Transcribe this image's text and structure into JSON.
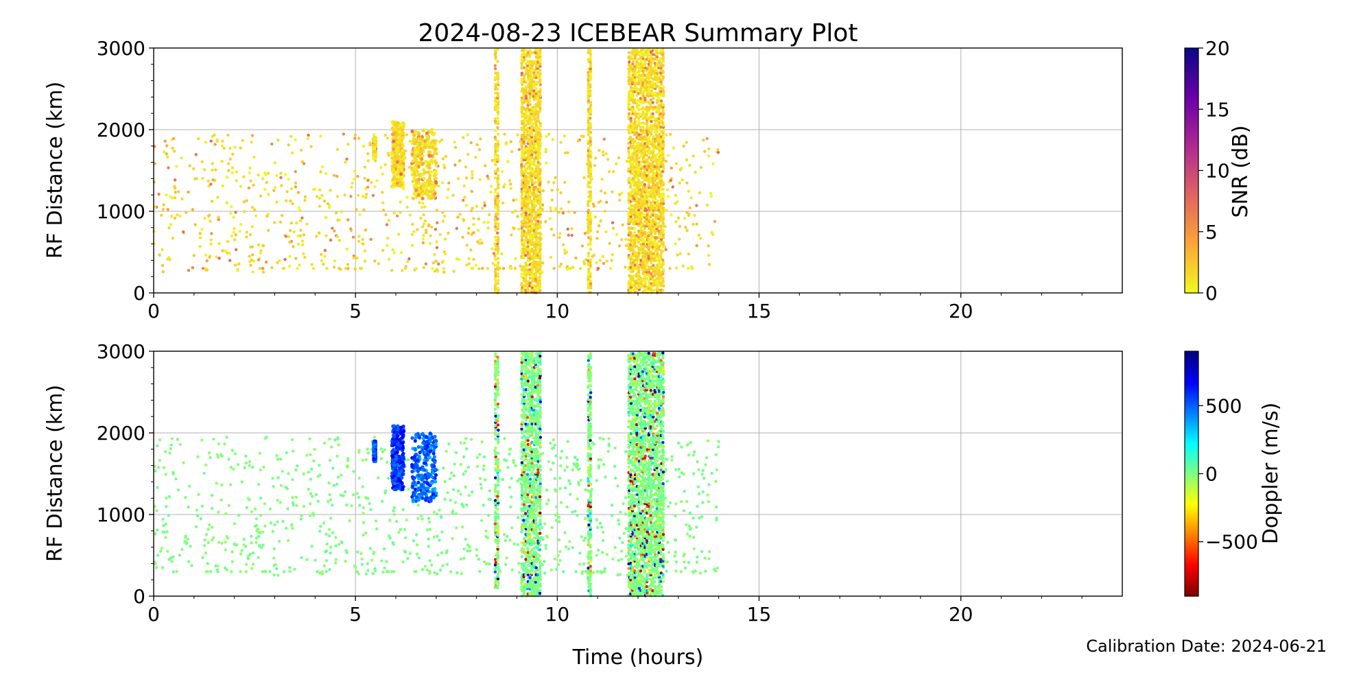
{
  "figure": {
    "title": "2024-08-23 ICEBEAR Summary Plot",
    "xlabel": "Time (hours)",
    "footer": "Calibration Date: 2024-06-21"
  },
  "chart_data": [
    {
      "type": "scatter",
      "name": "snr-panel",
      "ylabel": "RF Distance (km)",
      "xlim": [
        0,
        24
      ],
      "ylim": [
        0,
        3000
      ],
      "xticks": [
        0,
        5,
        10,
        15,
        20
      ],
      "yticks": [
        0,
        1000,
        2000,
        3000
      ],
      "grid": true,
      "colorbar": {
        "label": "SNR (dB)",
        "range": [
          0,
          20
        ],
        "ticks": [
          0,
          5,
          10,
          15,
          20
        ],
        "colormap": "plasma_r",
        "colors": [
          "#f0f921",
          "#fca636",
          "#e16462",
          "#b12a90",
          "#6a00a8",
          "#0d0887"
        ]
      },
      "bursts": [
        {
          "x": 8.5,
          "width": 0.12,
          "yrange": [
            0,
            3000
          ]
        },
        {
          "x": 9.35,
          "width": 0.5,
          "yrange": [
            0,
            3000
          ]
        },
        {
          "x": 10.8,
          "width": 0.1,
          "yrange": [
            0,
            3000
          ]
        },
        {
          "x": 12.2,
          "width": 0.9,
          "yrange": [
            0,
            3000
          ]
        }
      ],
      "clusters": [
        {
          "x": [
            5.9,
            6.2
          ],
          "y": [
            1300,
            2100
          ]
        },
        {
          "x": [
            6.4,
            7.0
          ],
          "y": [
            1150,
            2000
          ]
        },
        {
          "x": [
            5.45,
            5.5
          ],
          "y": [
            1650,
            1900
          ]
        }
      ],
      "scatter_extent": {
        "x": [
          0,
          14
        ],
        "y": [
          250,
          1950
        ]
      }
    },
    {
      "type": "scatter",
      "name": "doppler-panel",
      "ylabel": "RF Distance (km)",
      "xlim": [
        0,
        24
      ],
      "ylim": [
        0,
        3000
      ],
      "xticks": [
        0,
        5,
        10,
        15,
        20
      ],
      "yticks": [
        0,
        1000,
        2000,
        3000
      ],
      "grid": true,
      "colorbar": {
        "label": "Doppler (m/s)",
        "range": [
          -900,
          900
        ],
        "ticks": [
          -500,
          0,
          500
        ],
        "ticklabels": [
          "−500",
          "0",
          "500"
        ],
        "colormap": "jet_r",
        "colors": [
          "#7f0000",
          "#ff0000",
          "#ff8000",
          "#ffff00",
          "#80ff80",
          "#00ffff",
          "#0080ff",
          "#0000ff",
          "#00007f"
        ]
      },
      "bursts": [
        {
          "x": 8.5,
          "width": 0.12,
          "yrange": [
            100,
            3000
          ]
        },
        {
          "x": 9.35,
          "width": 0.5,
          "yrange": [
            0,
            3000
          ]
        },
        {
          "x": 10.8,
          "width": 0.1,
          "yrange": [
            0,
            3000
          ]
        },
        {
          "x": 12.2,
          "width": 0.9,
          "yrange": [
            0,
            3000
          ]
        }
      ],
      "clusters": [
        {
          "x": [
            5.9,
            6.2
          ],
          "y": [
            1300,
            2100
          ],
          "doppler": 600
        },
        {
          "x": [
            6.4,
            7.0
          ],
          "y": [
            1150,
            2000
          ],
          "doppler": 500
        },
        {
          "x": [
            5.45,
            5.5
          ],
          "y": [
            1650,
            1900
          ],
          "doppler": 550
        }
      ],
      "scatter_extent": {
        "x": [
          0,
          14
        ],
        "y": [
          250,
          1950
        ]
      }
    }
  ]
}
